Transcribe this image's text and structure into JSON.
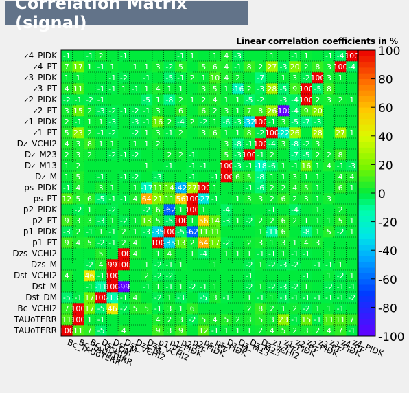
{
  "chart_data": {
    "type": "heatmap",
    "title": "Correlation Matrix (signal)",
    "subtitle": "Linear correlation coefficients in %",
    "variables": [
      "Bc_TAUoTERR",
      "Bc_TAUoTERR_2",
      "Bc_VCHI2",
      "Dst_DM",
      "Dst_M",
      "Dst_VCHI2",
      "Dzs_M",
      "Dzs_VCHI2",
      "p1_PT",
      "p1_PIDK",
      "p2_PT",
      "p2_PIDK",
      "ps_PT",
      "ps_PIDK",
      "Dz_M",
      "Dz_M13",
      "Dz_M23",
      "Dz_VCHI2",
      "z1_PT",
      "z1_PIDK",
      "z2_PT",
      "z2_PIDK",
      "z3_PT",
      "z3_PIDK",
      "z4_PT",
      "z4_PIDK"
    ],
    "y_tick_labels": [
      "_TAUoTERR",
      "_TAUoTERR",
      "Bc_VCHI2",
      "Dst_DM",
      "Dst_M",
      "Dst_VCHI2",
      "Dzs_M",
      "Dzs_VCHI2",
      "p1_PT",
      "p1_PIDK",
      "p2_PT",
      "p2_PIDK",
      "ps_PT",
      "ps_PIDK",
      "Dz_M",
      "Dz_M13",
      "Dz_M23",
      "Dz_VCHI2",
      "z1_PT",
      "z1_PIDK",
      "z2_PT",
      "z2_PIDK",
      "z3_PT",
      "z3_PIDK",
      "z4_PT",
      "z4_PIDK"
    ],
    "x_tick_labels": [
      "Bc_TAUoTERR",
      "Bc_TAUoTERR",
      "Bc_VCHI2",
      "Dst_DM",
      "Dst_M",
      "Dst_VCHI2",
      "Dzs_M",
      "Dzs_VCHI2",
      "p1_PT",
      "p1_PIDK",
      "p2_PT",
      "p2_PIDK",
      "ps_PT",
      "ps_PIDK",
      "Dz_M",
      "Dz_M13",
      "Dz_M23",
      "Dz_VCHI2",
      "z1_PT",
      "z1_PIDK",
      "z2_PT",
      "z2_PIDK",
      "z3_PT",
      "z3_PIDK",
      "z4_PT",
      "z4_PIDK"
    ],
    "values": [
      [
        100,
        11,
        7,
        -5,
        0,
        4,
        0,
        0,
        9,
        3,
        9,
        0,
        12,
        -1,
        1,
        1,
        1,
        2,
        4,
        5,
        2,
        3,
        2,
        4,
        7,
        -1
      ],
      [
        11,
        100,
        1,
        -1,
        0,
        0,
        0,
        0,
        4,
        2,
        3,
        -2,
        5,
        4,
        5,
        2,
        3,
        5,
        3,
        23,
        -1,
        15,
        -1,
        11,
        11,
        7
      ],
      [
        7,
        100,
        17,
        -5,
        46,
        -2,
        5,
        5,
        -1,
        3,
        1,
        6,
        0,
        0,
        0,
        0,
        2,
        8,
        2,
        1,
        2,
        -2,
        1,
        1,
        -1,
        0
      ],
      [
        -5,
        -1,
        17,
        100,
        -13,
        -1,
        4,
        0,
        -2,
        1,
        -3,
        0,
        -5,
        3,
        -1,
        0,
        1,
        -1,
        1,
        -3,
        -1,
        -1,
        -1,
        -1,
        -1,
        -2
      ],
      [
        0,
        0,
        -1,
        -11,
        100,
        -99,
        0,
        -1,
        1,
        -1,
        1,
        -2,
        -1,
        1,
        0,
        0,
        -2,
        1,
        -2,
        -3,
        -2,
        1,
        0,
        -2,
        -1,
        -1
      ],
      [
        4,
        0,
        46,
        -1,
        100,
        0,
        0,
        2,
        -2,
        -2,
        0,
        0,
        0,
        0,
        0,
        0,
        -1,
        0,
        0,
        0,
        0,
        -1,
        0,
        1,
        -2,
        1
      ],
      [
        0,
        0,
        -2,
        4,
        99,
        100,
        0,
        1,
        -2,
        -1,
        1,
        0,
        0,
        1,
        0,
        0,
        -2,
        1,
        -2,
        -3,
        -2,
        0,
        -1,
        -1,
        1,
        0
      ],
      [
        0,
        0,
        0,
        5,
        0,
        100,
        4,
        0,
        1,
        4,
        0,
        1,
        -4,
        0,
        1,
        1,
        1,
        -1,
        -1,
        1,
        -1,
        -1,
        0,
        1,
        0,
        0
      ],
      [
        9,
        4,
        5,
        -2,
        -1,
        2,
        4,
        0,
        100,
        -35,
        13,
        2,
        64,
        17,
        -2,
        0,
        2,
        3,
        1,
        3,
        1,
        4,
        3,
        0,
        0,
        0
      ],
      [
        -3,
        2,
        -1,
        1,
        -1,
        2,
        1,
        -3,
        -35,
        100,
        -5,
        -62,
        11,
        11,
        0,
        0,
        0,
        1,
        -11,
        6,
        0,
        -8,
        1,
        5,
        -2,
        1
      ],
      [
        9,
        3,
        3,
        -3,
        1,
        -2,
        1,
        13,
        5,
        -5,
        100,
        1,
        56,
        14,
        -3,
        1,
        -2,
        2,
        2,
        6,
        2,
        1,
        1,
        1,
        5,
        1
      ],
      [
        0,
        -2,
        1,
        0,
        -2,
        0,
        0,
        -2,
        6,
        -62,
        1,
        100,
        1,
        0,
        -4,
        0,
        0,
        0,
        -1,
        0,
        -4,
        0,
        1,
        0,
        2,
        0
      ],
      [
        12,
        5,
        6,
        -5,
        -1,
        -1,
        4,
        64,
        21,
        11,
        56,
        100,
        -27,
        -1,
        0,
        1,
        3,
        3,
        2,
        6,
        2,
        3,
        1,
        3,
        0,
        0
      ],
      [
        -1,
        4,
        0,
        3,
        1,
        0,
        1,
        -17,
        11,
        14,
        -42,
        27,
        100,
        1,
        0,
        0,
        -1,
        -6,
        2,
        2,
        4,
        5,
        1,
        0,
        6,
        1
      ],
      [
        1,
        5,
        0,
        -1,
        0,
        -1,
        -2,
        0,
        -3,
        0,
        0,
        -1,
        0,
        -1,
        100,
        6,
        5,
        -8,
        1,
        1,
        3,
        1,
        1,
        0,
        4,
        4
      ],
      [
        1,
        2,
        0,
        0,
        0,
        0,
        0,
        1,
        0,
        -1,
        0,
        -1,
        -1,
        0,
        100,
        -3,
        -1,
        -18,
        -6,
        1,
        -1,
        16,
        1,
        4,
        -1,
        -3
      ],
      [
        2,
        3,
        2,
        0,
        -2,
        -1,
        -2,
        0,
        0,
        2,
        2,
        -1,
        0,
        0,
        5,
        -3,
        100,
        -1,
        2,
        0,
        -7,
        -5,
        2,
        2,
        8,
        0
      ],
      [
        4,
        3,
        8,
        1,
        1,
        0,
        1,
        1,
        2,
        0,
        0,
        0,
        0,
        0,
        3,
        -8,
        -1,
        100,
        -4,
        3,
        -8,
        -2,
        3,
        0,
        0,
        0
      ],
      [
        5,
        23,
        2,
        -1,
        -2,
        0,
        -2,
        1,
        3,
        -1,
        2,
        0,
        3,
        6,
        1,
        1,
        8,
        -2,
        100,
        -22,
        26,
        0,
        28,
        0,
        27,
        1
      ],
      [
        2,
        -1,
        1,
        1,
        -3,
        0,
        -3,
        -1,
        16,
        2,
        -4,
        2,
        -2,
        1,
        -6,
        -3,
        -32,
        100,
        -1,
        3,
        -5,
        -7,
        -3,
        0,
        0,
        0
      ],
      [
        3,
        15,
        2,
        -3,
        -2,
        -1,
        -2,
        -1,
        3,
        0,
        6,
        0,
        6,
        2,
        3,
        1,
        7,
        8,
        26,
        -100,
        -4,
        9,
        20,
        0,
        0,
        0
      ],
      [
        -2,
        -1,
        -2,
        -1,
        0,
        0,
        0,
        -5,
        1,
        -8,
        2,
        1,
        2,
        4,
        1,
        1,
        -5,
        -2,
        0,
        -3,
        -4,
        100,
        2,
        3,
        2,
        1
      ],
      [
        4,
        11,
        0,
        -1,
        -1,
        1,
        -1,
        1,
        4,
        1,
        1,
        0,
        3,
        5,
        1,
        -16,
        2,
        -3,
        28,
        -5,
        9,
        100,
        -5,
        8,
        0,
        0
      ],
      [
        1,
        1,
        0,
        0,
        -1,
        -2,
        0,
        -1,
        0,
        -5,
        -1,
        2,
        1,
        10,
        4,
        2,
        0,
        -7,
        0,
        1,
        3,
        -2,
        100,
        3,
        1,
        0
      ],
      [
        7,
        17,
        1,
        -1,
        1,
        0,
        1,
        1,
        3,
        -2,
        5,
        0,
        5,
        6,
        4,
        -1,
        8,
        2,
        27,
        -3,
        20,
        2,
        8,
        3,
        100,
        -4
      ],
      [
        -1,
        0,
        -1,
        2,
        0,
        -1,
        0,
        0,
        0,
        0,
        -1,
        1,
        0,
        1,
        4,
        -3,
        0,
        0,
        1,
        0,
        -1,
        1,
        0,
        -1,
        -4,
        100
      ]
    ],
    "color_scale": {
      "min": -100,
      "max": 100,
      "ticks": [
        -100,
        -80,
        -60,
        -40,
        -20,
        0,
        20,
        40,
        60,
        80,
        100
      ]
    },
    "grid": true,
    "legend": "color bar right"
  }
}
